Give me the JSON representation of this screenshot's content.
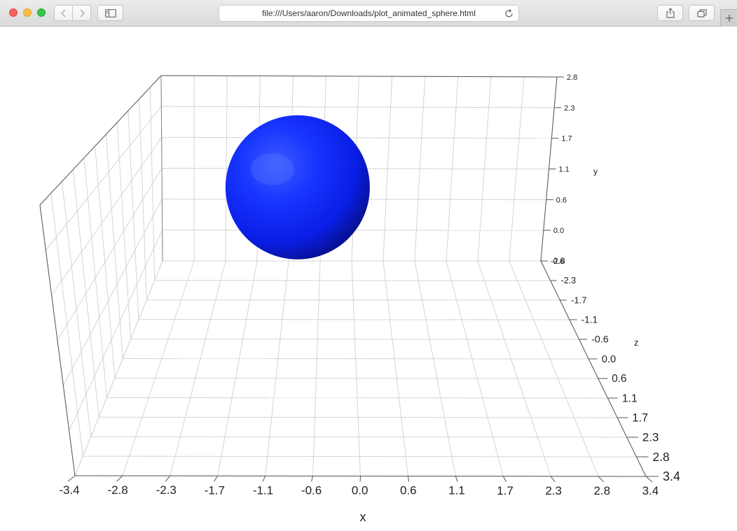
{
  "browser": {
    "url": "file:///Users/aaron/Downloads/plot_animated_sphere.html"
  },
  "icons": {
    "back": "chevron-left-icon",
    "forward": "chevron-right-icon",
    "sidebar": "sidebar-icon",
    "reload": "reload-icon",
    "share": "share-icon",
    "tabs": "tabs-icon",
    "new_tab": "plus-icon"
  },
  "chart_data": {
    "type": "scatter",
    "subtype": "3d-surface",
    "xlabel": "x",
    "ylabel": "y",
    "zlabel": "z",
    "x_ticks": [
      "-3.4",
      "-2.8",
      "-2.3",
      "-1.7",
      "-1.1",
      "-0.6",
      "0.0",
      "0.6",
      "1.1",
      "1.7",
      "2.3",
      "2.8",
      "3.4"
    ],
    "y_ticks": [
      "-0.6",
      "0.0",
      "0.6",
      "1.1",
      "1.7",
      "2.3",
      "2.8"
    ],
    "z_ticks": [
      "-2.8",
      "-2.3",
      "-1.7",
      "-1.1",
      "-0.6",
      "0.0",
      "0.6",
      "1.1",
      "1.7",
      "2.3",
      "2.8",
      "3.4"
    ],
    "xlim": [
      -3.4,
      3.4
    ],
    "ylim": [
      -0.6,
      2.8
    ],
    "zlim": [
      -2.8,
      3.4
    ],
    "grid": true,
    "sphere": {
      "center": [
        -0.95,
        0.95,
        -2.4
      ],
      "radius": 1.0,
      "color": "#0a1fff"
    }
  }
}
